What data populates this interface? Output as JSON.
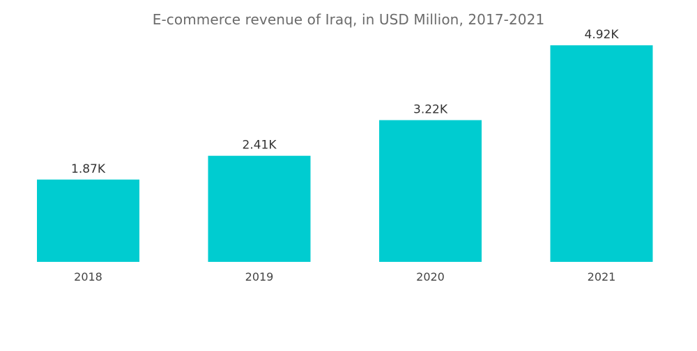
{
  "title": "E-commerce revenue of Iraq, in USD Million, 2017-2021",
  "colors": {
    "bar": "#00CCD0",
    "title": "#6b6b6b",
    "label": "#333333"
  },
  "chart_data": {
    "type": "bar",
    "title": "E-commerce revenue of Iraq, in USD Million, 2017-2021",
    "categories": [
      "2018",
      "2019",
      "2020",
      "2021"
    ],
    "values": [
      1870,
      2410,
      3220,
      4920
    ],
    "data_labels": [
      "1.87K",
      "2.41K",
      "3.22K",
      "4.92K"
    ],
    "xlabel": "",
    "ylabel": "",
    "ylim": [
      0,
      5000
    ],
    "grid": false,
    "legend": "none"
  }
}
